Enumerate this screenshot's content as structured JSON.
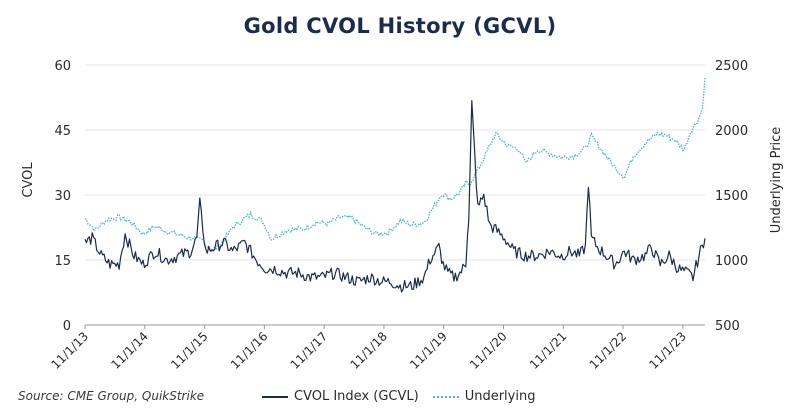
{
  "chart_data": {
    "type": "line",
    "title": "Gold CVOL History (GCVL)",
    "source": "Source: CME Group, QuikStrike",
    "ylabel_left": "CVOL",
    "ylabel_right": "Underlying Price",
    "ylim_left": [
      0,
      60
    ],
    "ylim_right": [
      500,
      2500
    ],
    "yticks_left": [
      "0",
      "15",
      "30",
      "45",
      "60"
    ],
    "yticks_right": [
      "500",
      "1000",
      "1500",
      "2000",
      "2500"
    ],
    "xlim": [
      2013.83,
      2024.2
    ],
    "xtick_labels": [
      "11/1/13",
      "11/1/14",
      "11/1/15",
      "11/1/16",
      "11/1/17",
      "11/1/18",
      "11/1/19",
      "11/1/20",
      "11/1/21",
      "11/1/22",
      "11/1/23"
    ],
    "grid": "horizontal",
    "series": [
      {
        "name": "CVOL Index (GCVL)",
        "axis": "left",
        "color": "#1b2b4b",
        "style": "solid",
        "x": [
          2013.83,
          2013.95,
          2014.1,
          2014.25,
          2014.4,
          2014.5,
          2014.65,
          2014.8,
          2015.0,
          2015.2,
          2015.4,
          2015.6,
          2015.7,
          2015.75,
          2015.85,
          2016.0,
          2016.15,
          2016.3,
          2016.5,
          2016.7,
          2016.85,
          2017.0,
          2017.2,
          2017.4,
          2017.6,
          2017.8,
          2018.0,
          2018.2,
          2018.4,
          2018.6,
          2018.8,
          2018.95,
          2019.1,
          2019.3,
          2019.5,
          2019.6,
          2019.7,
          2019.75,
          2019.82,
          2019.9,
          2020.0,
          2020.1,
          2020.2,
          2020.23,
          2020.25,
          2020.3,
          2020.4,
          2020.5,
          2020.6,
          2020.7,
          2020.85,
          2021.0,
          2021.2,
          2021.4,
          2021.6,
          2021.8,
          2021.95,
          2022.1,
          2022.2,
          2022.25,
          2022.3,
          2022.4,
          2022.55,
          2022.7,
          2022.85,
          2023.0,
          2023.2,
          2023.3,
          2023.45,
          2023.6,
          2023.75,
          2023.9,
          2024.0,
          2024.1,
          2024.15,
          2024.2
        ],
        "values": [
          19,
          20,
          16,
          14,
          14,
          21,
          16,
          14,
          17,
          15,
          16,
          17,
          20,
          28,
          17,
          18,
          19,
          17,
          19,
          15,
          13,
          13,
          12,
          12,
          11,
          11,
          12,
          11,
          10,
          11,
          10,
          10,
          9,
          9,
          11,
          15,
          17,
          18,
          14,
          12,
          11,
          12,
          14,
          22,
          24,
          51,
          27,
          30,
          23,
          22,
          20,
          17,
          16,
          16,
          17,
          16,
          17,
          16,
          18,
          33,
          20,
          18,
          16,
          14,
          17,
          15,
          16,
          18,
          14,
          16,
          13,
          12,
          11,
          16,
          18,
          20
        ]
      },
      {
        "name": "Underlying",
        "axis": "right",
        "color": "#4fb3e0",
        "style": "dotted",
        "x": [
          2013.83,
          2014.0,
          2014.2,
          2014.4,
          2014.6,
          2014.8,
          2015.0,
          2015.2,
          2015.5,
          2015.8,
          2015.95,
          2016.1,
          2016.3,
          2016.5,
          2016.6,
          2016.8,
          2016.95,
          2017.2,
          2017.5,
          2017.7,
          2017.9,
          2018.1,
          2018.3,
          2018.5,
          2018.7,
          2018.9,
          2019.1,
          2019.3,
          2019.5,
          2019.65,
          2019.8,
          2019.95,
          2020.1,
          2020.2,
          2020.25,
          2020.35,
          2020.5,
          2020.6,
          2020.7,
          2020.9,
          2021.1,
          2021.2,
          2021.4,
          2021.6,
          2021.8,
          2022.0,
          2022.2,
          2022.3,
          2022.5,
          2022.7,
          2022.85,
          2023.0,
          2023.2,
          2023.4,
          2023.55,
          2023.7,
          2023.85,
          2023.95,
          2024.05,
          2024.15,
          2024.2
        ],
        "values": [
          1320,
          1230,
          1310,
          1330,
          1290,
          1200,
          1260,
          1220,
          1180,
          1150,
          1070,
          1120,
          1250,
          1320,
          1350,
          1300,
          1160,
          1230,
          1240,
          1290,
          1280,
          1330,
          1320,
          1250,
          1200,
          1210,
          1300,
          1270,
          1290,
          1400,
          1510,
          1470,
          1520,
          1590,
          1580,
          1650,
          1780,
          1880,
          1970,
          1880,
          1850,
          1740,
          1850,
          1820,
          1790,
          1800,
          1860,
          1950,
          1830,
          1710,
          1640,
          1800,
          1900,
          1970,
          1960,
          1920,
          1850,
          1980,
          2050,
          2150,
          2400
        ]
      }
    ]
  }
}
